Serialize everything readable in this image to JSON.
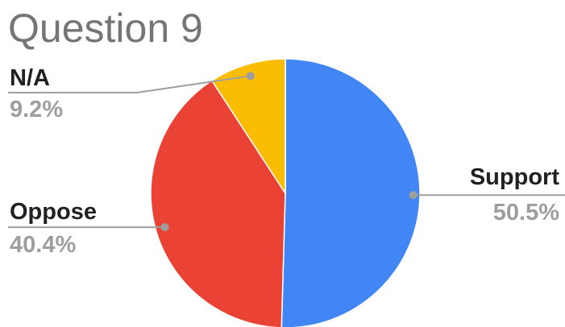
{
  "chart_data": {
    "type": "pie",
    "title": "Question 9",
    "categories": [
      "Support",
      "Oppose",
      "N/A"
    ],
    "values": [
      50.5,
      40.4,
      9.2
    ],
    "value_labels": [
      "50.5%",
      "40.4%",
      "9.2%"
    ],
    "colors": [
      "#4285f4",
      "#ea4335",
      "#fbbc04"
    ],
    "legend": "none"
  }
}
